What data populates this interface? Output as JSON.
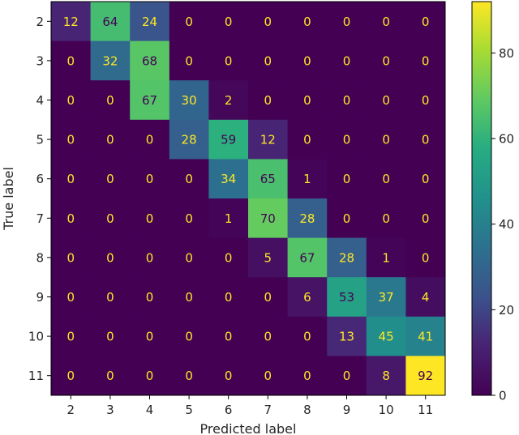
{
  "chart_data": {
    "type": "heatmap",
    "title": "",
    "xlabel": "Predicted label",
    "ylabel": "True label",
    "x_categories": [
      "2",
      "3",
      "4",
      "5",
      "6",
      "7",
      "8",
      "9",
      "10",
      "11"
    ],
    "y_categories": [
      "2",
      "3",
      "4",
      "5",
      "6",
      "7",
      "8",
      "9",
      "10",
      "11"
    ],
    "values": [
      [
        12,
        64,
        24,
        0,
        0,
        0,
        0,
        0,
        0,
        0
      ],
      [
        0,
        32,
        68,
        0,
        0,
        0,
        0,
        0,
        0,
        0
      ],
      [
        0,
        0,
        67,
        30,
        2,
        0,
        0,
        0,
        0,
        0
      ],
      [
        0,
        0,
        0,
        28,
        59,
        12,
        0,
        0,
        0,
        0
      ],
      [
        0,
        0,
        0,
        0,
        34,
        65,
        1,
        0,
        0,
        0
      ],
      [
        0,
        0,
        0,
        0,
        1,
        70,
        28,
        0,
        0,
        0
      ],
      [
        0,
        0,
        0,
        0,
        0,
        5,
        67,
        28,
        1,
        0
      ],
      [
        0,
        0,
        0,
        0,
        0,
        0,
        6,
        53,
        37,
        4
      ],
      [
        0,
        0,
        0,
        0,
        0,
        0,
        0,
        13,
        45,
        41
      ],
      [
        0,
        0,
        0,
        0,
        0,
        0,
        0,
        0,
        8,
        92
      ]
    ],
    "colormap": "viridis",
    "color_range": [
      0,
      92
    ],
    "colorbar": {
      "ticks": [
        0,
        20,
        40,
        60,
        80
      ],
      "tick_labels": [
        "0",
        "20",
        "40",
        "60",
        "80"
      ]
    },
    "grid": false,
    "legend": "colorbar-right"
  }
}
